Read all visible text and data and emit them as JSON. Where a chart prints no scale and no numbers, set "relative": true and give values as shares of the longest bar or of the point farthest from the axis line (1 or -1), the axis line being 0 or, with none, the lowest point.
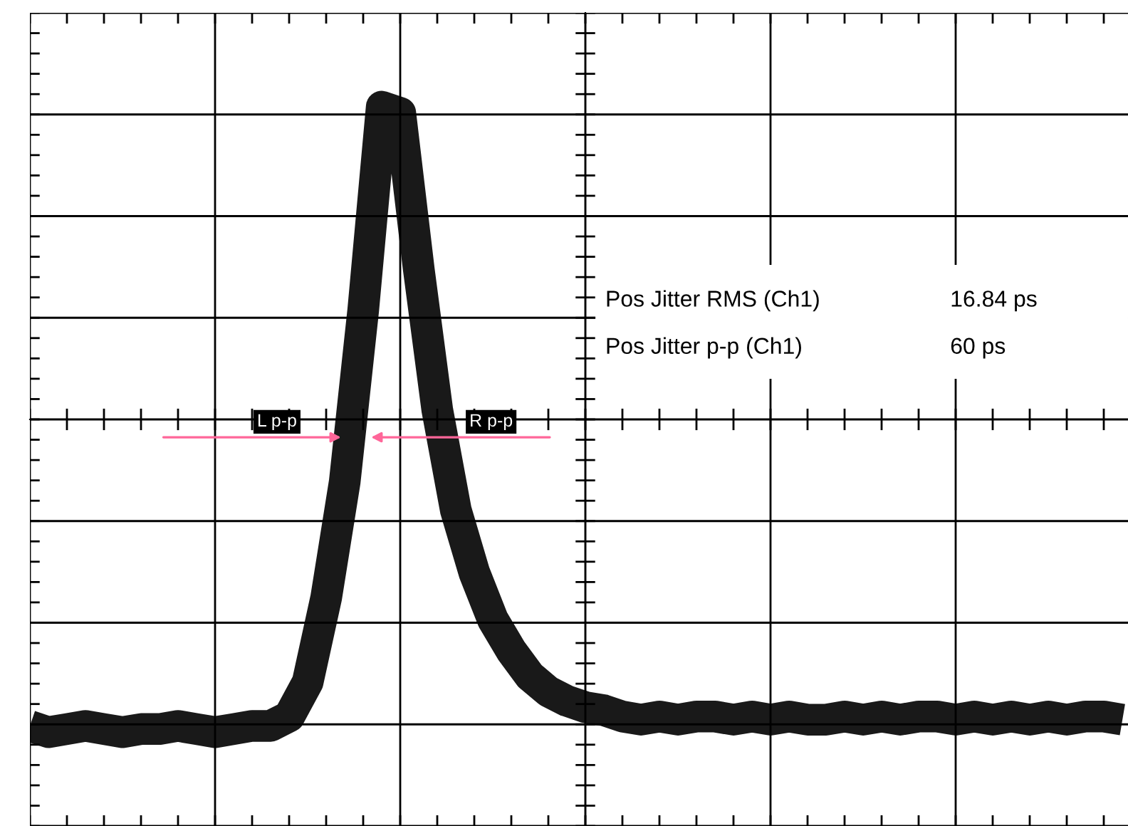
{
  "chart_data": {
    "type": "line",
    "relative": true,
    "categories": [
      null,
      null,
      null,
      null,
      null,
      null,
      null,
      null,
      null,
      null,
      null,
      null,
      null,
      null,
      null,
      null,
      null,
      null,
      null,
      null,
      null,
      null,
      null,
      null,
      null,
      null,
      null,
      null,
      null,
      null,
      null,
      null,
      null,
      null,
      null,
      null,
      null,
      null,
      null,
      null,
      null,
      null,
      null,
      null,
      null,
      null,
      null,
      null,
      null,
      null,
      null,
      null,
      null,
      null,
      null,
      null,
      null,
      null,
      null,
      null
    ],
    "series": [
      {
        "color": "#000000",
        "values": [
          -0.98,
          -1.0,
          -0.99,
          -0.98,
          -0.99,
          -1.0,
          -0.99,
          -0.99,
          -0.98,
          -0.99,
          -1.0,
          -0.99,
          -0.98,
          -0.98,
          -0.95,
          -0.84,
          -0.57,
          -0.2,
          0.35,
          1.0,
          0.98,
          0.48,
          0.03,
          -0.29,
          -0.49,
          -0.64,
          -0.74,
          -0.82,
          -0.87,
          -0.9,
          -0.92,
          -0.93,
          -0.95,
          -0.96,
          -0.95,
          -0.96,
          -0.95,
          -0.95,
          -0.96,
          -0.95,
          -0.96,
          -0.95,
          -0.96,
          -0.96,
          -0.95,
          -0.96,
          -0.95,
          -0.96,
          -0.95,
          -0.95,
          -0.96,
          -0.95,
          -0.96,
          -0.95,
          -0.96,
          -0.95,
          -0.96,
          -0.95,
          -0.95,
          -0.96
        ]
      }
    ],
    "annotations": [
      "Pos Jitter RMS (Ch1)",
      "16.84 ps",
      "Pos Jitter p-p (Ch1)",
      "60 ps",
      "L p-p",
      "R p-p"
    ],
    "grid": true
  }
}
